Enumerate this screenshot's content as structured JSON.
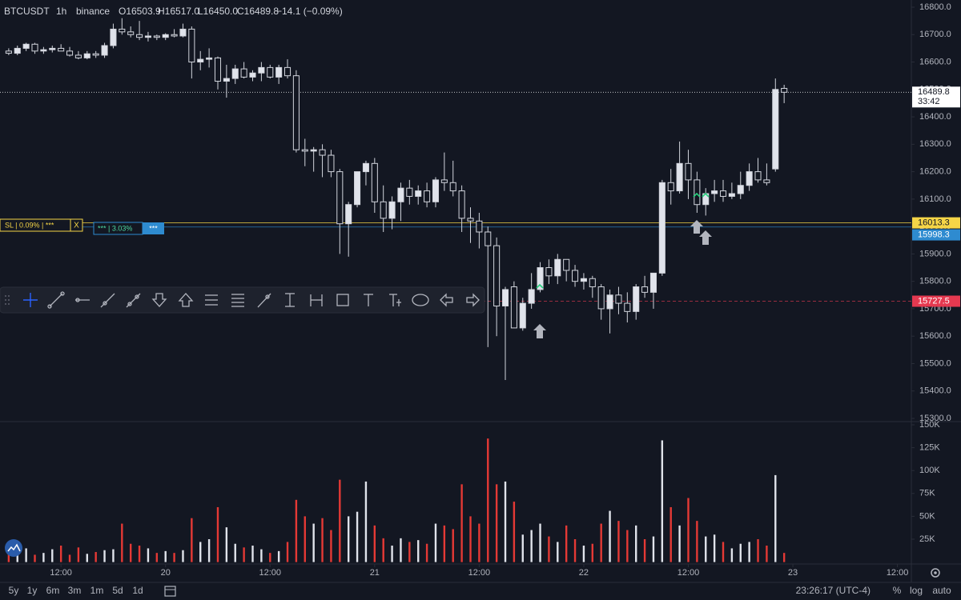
{
  "chart_data": {
    "type": "candlestick",
    "legend": {
      "symbol": "BTCUSDT",
      "interval": "1h",
      "exchange": "binance",
      "open": "O16503.9",
      "high": "H16517.0",
      "low": "L16450.0",
      "close": "C16489.8",
      "change": "−14.1 (−0.09%)"
    },
    "up_color": "#e0e3eb",
    "down_color": "#131722",
    "wick_color": "#d1d4dc",
    "volume_up_color": "#e0e3eb",
    "volume_down_color": "#e53935",
    "xlim": [
      -1,
      103.6
    ],
    "xticks": [
      {
        "value": 6,
        "label": "12:00"
      },
      {
        "value": 18,
        "label": "20"
      },
      {
        "value": 30,
        "label": "12:00"
      },
      {
        "value": 42,
        "label": "21"
      },
      {
        "value": 54,
        "label": "12:00"
      },
      {
        "value": 66,
        "label": "22"
      },
      {
        "value": 78,
        "label": "12:00"
      },
      {
        "value": 90,
        "label": "23"
      },
      {
        "value": 102,
        "label": "12:00"
      }
    ],
    "ylim": [
      15300,
      16800
    ],
    "yticks": [
      {
        "value": 15300,
        "label": "15300.0"
      },
      {
        "value": 15400,
        "label": "15400.0"
      },
      {
        "value": 15500,
        "label": "15500.0"
      },
      {
        "value": 15600,
        "label": "15600.0"
      },
      {
        "value": 15700,
        "label": "15700.0"
      },
      {
        "value": 15800,
        "label": "15800.0"
      },
      {
        "value": 15900,
        "label": "15900.0"
      },
      {
        "value": 16000,
        "label": "16000.0"
      },
      {
        "value": 16100,
        "label": "16100.0"
      },
      {
        "value": 16200,
        "label": "16200.0"
      },
      {
        "value": 16300,
        "label": "16300.0"
      },
      {
        "value": 16400,
        "label": "16400.0"
      },
      {
        "value": 16500,
        "label": "16500.0"
      },
      {
        "value": 16600,
        "label": "16600.0"
      },
      {
        "value": 16700,
        "label": "16700.0"
      },
      {
        "value": 16800,
        "label": "16800.0"
      }
    ],
    "grid": false,
    "volume_ylim": [
      0,
      150000
    ],
    "volume_ticks": [
      {
        "value": 25000,
        "label": "25K"
      },
      {
        "value": 50000,
        "label": "50K"
      },
      {
        "value": 75000,
        "label": "75K"
      },
      {
        "value": 100000,
        "label": "100K"
      },
      {
        "value": 125000,
        "label": "125K"
      },
      {
        "value": 150000,
        "label": "150K"
      }
    ],
    "candles": [
      [
        16640,
        16650,
        16625,
        16632
      ],
      [
        16632,
        16660,
        16625,
        16650
      ],
      [
        16650,
        16670,
        16640,
        16665
      ],
      [
        16665,
        16670,
        16630,
        16640
      ],
      [
        16640,
        16655,
        16630,
        16645
      ],
      [
        16645,
        16660,
        16635,
        16650
      ],
      [
        16650,
        16665,
        16640,
        16640
      ],
      [
        16640,
        16655,
        16620,
        16625
      ],
      [
        16625,
        16640,
        16610,
        16615
      ],
      [
        16615,
        16640,
        16610,
        16630
      ],
      [
        16630,
        16640,
        16615,
        16625
      ],
      [
        16625,
        16670,
        16615,
        16660
      ],
      [
        16660,
        16740,
        16650,
        16720
      ],
      [
        16720,
        16760,
        16700,
        16710
      ],
      [
        16710,
        16730,
        16690,
        16700
      ],
      [
        16700,
        16750,
        16680,
        16690
      ],
      [
        16690,
        16710,
        16675,
        16695
      ],
      [
        16695,
        16700,
        16680,
        16690
      ],
      [
        16690,
        16705,
        16680,
        16700
      ],
      [
        16700,
        16720,
        16690,
        16695
      ],
      [
        16695,
        16740,
        16690,
        16720
      ],
      [
        16720,
        16730,
        16540,
        16600
      ],
      [
        16600,
        16640,
        16570,
        16610
      ],
      [
        16610,
        16650,
        16580,
        16615
      ],
      [
        16615,
        16620,
        16500,
        16530
      ],
      [
        16530,
        16590,
        16470,
        16540
      ],
      [
        16540,
        16590,
        16520,
        16575
      ],
      [
        16575,
        16600,
        16540,
        16545
      ],
      [
        16545,
        16570,
        16530,
        16560
      ],
      [
        16560,
        16600,
        16530,
        16580
      ],
      [
        16580,
        16590,
        16540,
        16545
      ],
      [
        16545,
        16590,
        16520,
        16580
      ],
      [
        16580,
        16610,
        16540,
        16550
      ],
      [
        16550,
        16570,
        16270,
        16280
      ],
      [
        16280,
        16320,
        16220,
        16275
      ],
      [
        16275,
        16290,
        16200,
        16280
      ],
      [
        16280,
        16300,
        16180,
        16260
      ],
      [
        16260,
        16280,
        16180,
        16200
      ],
      [
        16200,
        16210,
        15900,
        16010
      ],
      [
        16010,
        16090,
        15890,
        16080
      ],
      [
        16080,
        16200,
        16070,
        16200
      ],
      [
        16200,
        16240,
        16150,
        16230
      ],
      [
        16230,
        16250,
        16050,
        16090
      ],
      [
        16090,
        16150,
        15980,
        16030
      ],
      [
        16030,
        16110,
        15990,
        16090
      ],
      [
        16090,
        16160,
        16020,
        16140
      ],
      [
        16140,
        16170,
        16080,
        16110
      ],
      [
        16110,
        16150,
        16080,
        16130
      ],
      [
        16130,
        16160,
        16070,
        16090
      ],
      [
        16090,
        16180,
        16070,
        16170
      ],
      [
        16170,
        16270,
        16130,
        16160
      ],
      [
        16160,
        16240,
        16110,
        16130
      ],
      [
        16130,
        16150,
        15980,
        16030
      ],
      [
        16030,
        16070,
        15940,
        16020
      ],
      [
        16020,
        16050,
        15920,
        15980
      ],
      [
        15980,
        16000,
        15560,
        15930
      ],
      [
        15930,
        15960,
        15600,
        15710
      ],
      [
        15710,
        15780,
        15440,
        15770
      ],
      [
        15780,
        15800,
        15630,
        15630
      ],
      [
        15630,
        15740,
        15620,
        15720
      ],
      [
        15720,
        15830,
        15700,
        15770
      ],
      [
        15770,
        15870,
        15760,
        15850
      ],
      [
        15850,
        15880,
        15790,
        15820
      ],
      [
        15820,
        15900,
        15790,
        15880
      ],
      [
        15880,
        15880,
        15800,
        15840
      ],
      [
        15840,
        15860,
        15780,
        15800
      ],
      [
        15800,
        15830,
        15770,
        15810
      ],
      [
        15810,
        15820,
        15740,
        15780
      ],
      [
        15780,
        15790,
        15660,
        15700
      ],
      [
        15700,
        15770,
        15610,
        15750
      ],
      [
        15750,
        15780,
        15680,
        15720
      ],
      [
        15720,
        15760,
        15650,
        15690
      ],
      [
        15690,
        15790,
        15660,
        15780
      ],
      [
        15780,
        15820,
        15740,
        15760
      ],
      [
        15760,
        15830,
        15700,
        15830
      ],
      [
        15830,
        16170,
        15820,
        16160
      ],
      [
        16160,
        16210,
        16080,
        16130
      ],
      [
        16130,
        16310,
        16120,
        16230
      ],
      [
        16230,
        16280,
        16100,
        16170
      ],
      [
        16170,
        16200,
        16050,
        16080
      ],
      [
        16080,
        16140,
        16040,
        16120
      ],
      [
        16120,
        16170,
        16090,
        16130
      ],
      [
        16130,
        16170,
        16090,
        16110
      ],
      [
        16110,
        16160,
        16100,
        16120
      ],
      [
        16120,
        16200,
        16100,
        16150
      ],
      [
        16150,
        16230,
        16130,
        16200
      ],
      [
        16200,
        16250,
        16160,
        16170
      ],
      [
        16170,
        16230,
        16150,
        16160
      ],
      [
        16210,
        16540,
        16200,
        16500
      ],
      [
        16503.9,
        16517,
        16450,
        16489.8
      ]
    ],
    "volume": [
      10000,
      12000,
      15000,
      8000,
      10000,
      14000,
      18000,
      8000,
      16000,
      9000,
      11000,
      13000,
      14000,
      42000,
      20000,
      18000,
      15000,
      10000,
      12000,
      10000,
      13000,
      48000,
      22000,
      25000,
      60000,
      38000,
      20000,
      16000,
      18000,
      14000,
      10000,
      12000,
      22000,
      68000,
      50000,
      42000,
      48000,
      35000,
      90000,
      50000,
      55000,
      88000,
      40000,
      26000,
      18000,
      26000,
      22000,
      24000,
      20000,
      42000,
      40000,
      36000,
      85000,
      50000,
      42000,
      135000,
      85000,
      88000,
      66000,
      30000,
      35000,
      42000,
      28000,
      22000,
      40000,
      25000,
      18000,
      20000,
      42000,
      56000,
      45000,
      35000,
      40000,
      25000,
      28000,
      133000,
      60000,
      40000,
      70000,
      45000,
      28000,
      30000,
      22000,
      15000,
      20000,
      22000,
      25000,
      18000,
      95000,
      10000
    ],
    "price_lines": [
      {
        "value": 16489.8,
        "color": "#ffffff",
        "text_color": "#131722",
        "style": "dotted",
        "countdown": "33:42"
      },
      {
        "value": 16013.3,
        "color": "#f5d547",
        "text_color": "#131722",
        "style": "solid"
      },
      {
        "value": 15998.3,
        "color": "#2e8bd0",
        "text_color": "#ffffff",
        "style": "solid"
      },
      {
        "value": 15727.5,
        "color": "#e53950",
        "text_color": "#ffffff",
        "style": "dashed"
      }
    ],
    "order_overlay": {
      "stop_label": "SL | 0.09% | ***",
      "close": "X",
      "target_label": "*** | 3.03%",
      "target_tag": "***"
    },
    "bottom_bar": {
      "ranges": [
        "5y",
        "1y",
        "6m",
        "3m",
        "1m",
        "5d",
        "1d"
      ],
      "clock": "23:26:17 (UTC-4)",
      "percent": "%",
      "log": "log",
      "auto": "auto"
    }
  }
}
